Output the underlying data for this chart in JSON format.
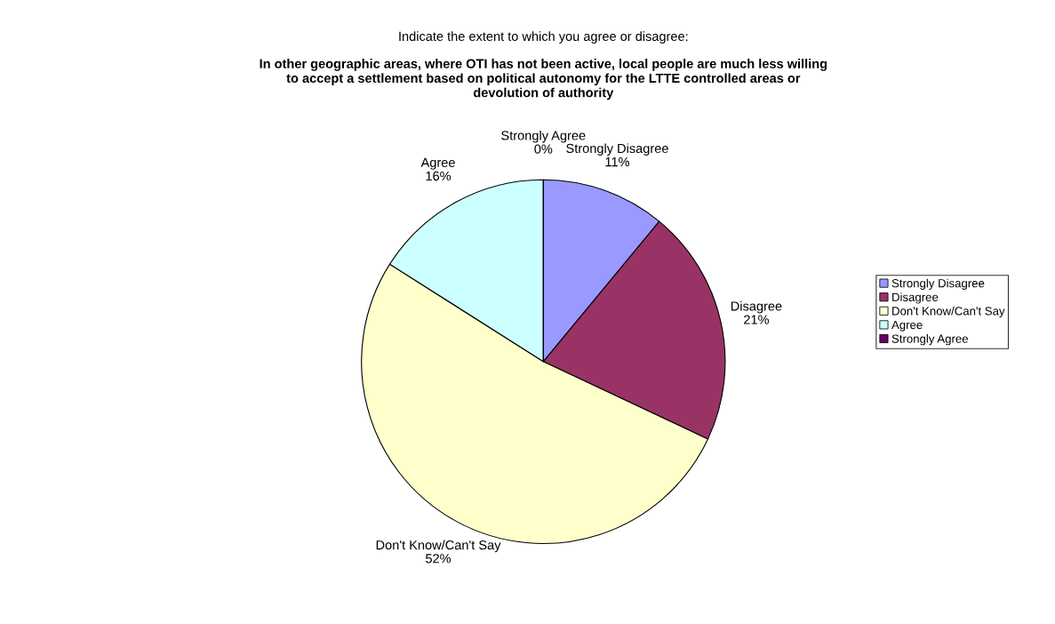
{
  "chart_data": {
    "type": "pie",
    "title": "Indicate the extent to which you agree or disagree:",
    "subtitle": "In other geographic areas, where OTI has not been active, local people are much less willing\nto accept a settlement based on political autonomy for the LTTE controlled areas or\ndevolution of authority",
    "categories": [
      "Strongly Disagree",
      "Disagree",
      "Don't Know/Can't Say",
      "Agree",
      "Strongly Agree"
    ],
    "values": [
      11,
      21,
      52,
      16,
      0
    ],
    "value_labels": [
      "11%",
      "21%",
      "52%",
      "16%",
      "0%"
    ],
    "colors": [
      "#9999ff",
      "#993366",
      "#ffffcc",
      "#ccffff",
      "#660066"
    ],
    "legend": "right"
  }
}
